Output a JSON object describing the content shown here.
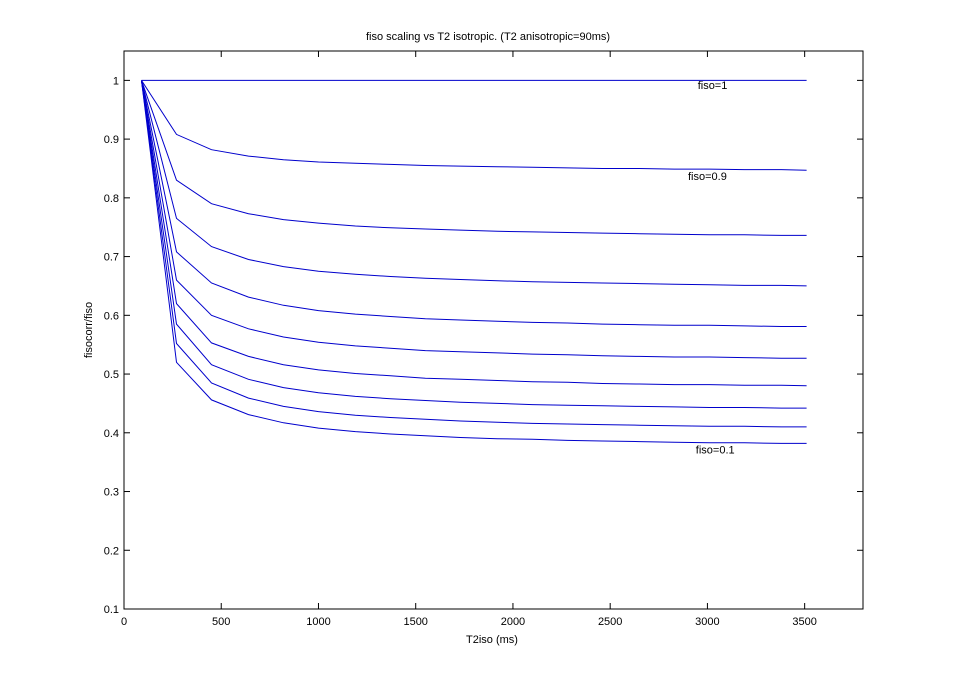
{
  "chart_data": {
    "type": "line",
    "title": "fiso scaling vs T2 isotropic. (T2 anisotropic=90ms)",
    "xlabel": "T2iso (ms)",
    "ylabel": "fisocorr/fiso",
    "xlim": [
      0,
      3800
    ],
    "ylim": [
      0.1,
      1.05
    ],
    "xticks": [
      0,
      500,
      1000,
      1500,
      2000,
      2500,
      3000,
      3500
    ],
    "yticks": [
      0.1,
      0.2,
      0.3,
      0.4,
      0.5,
      0.6,
      0.7,
      0.8,
      0.9,
      1
    ],
    "ytick_labels": [
      "0.1",
      "0.2",
      "0.3",
      "0.4",
      "0.5",
      "0.6",
      "0.7",
      "0.8",
      "0.9",
      "1"
    ],
    "grid": false,
    "line_color": "#0000cc",
    "x": [
      90,
      270,
      450,
      640,
      820,
      1000,
      1190,
      1370,
      1550,
      1730,
      1920,
      2100,
      2280,
      2460,
      2650,
      2830,
      3010,
      3190,
      3380,
      3510
    ],
    "series": [
      {
        "values": [
          1,
          1,
          1,
          1,
          1,
          1,
          1,
          1,
          1,
          1,
          1,
          1,
          1,
          1,
          1,
          1,
          1,
          1,
          1,
          1
        ]
      },
      {
        "values": [
          1,
          0.908,
          0.882,
          0.871,
          0.865,
          0.861,
          0.859,
          0.857,
          0.855,
          0.854,
          0.853,
          0.852,
          0.851,
          0.85,
          0.85,
          0.849,
          0.849,
          0.848,
          0.848,
          0.847
        ]
      },
      {
        "values": [
          1,
          0.83,
          0.79,
          0.773,
          0.763,
          0.757,
          0.752,
          0.749,
          0.747,
          0.745,
          0.743,
          0.742,
          0.741,
          0.74,
          0.739,
          0.738,
          0.737,
          0.737,
          0.736,
          0.736
        ]
      },
      {
        "values": [
          1,
          0.765,
          0.717,
          0.695,
          0.683,
          0.675,
          0.67,
          0.666,
          0.663,
          0.661,
          0.659,
          0.657,
          0.656,
          0.655,
          0.654,
          0.653,
          0.652,
          0.651,
          0.651,
          0.65
        ]
      },
      {
        "values": [
          1,
          0.708,
          0.655,
          0.631,
          0.617,
          0.608,
          0.602,
          0.598,
          0.594,
          0.592,
          0.59,
          0.588,
          0.587,
          0.585,
          0.584,
          0.583,
          0.583,
          0.582,
          0.581,
          0.581
        ]
      },
      {
        "values": [
          1,
          0.66,
          0.6,
          0.577,
          0.563,
          0.554,
          0.548,
          0.544,
          0.54,
          0.538,
          0.536,
          0.534,
          0.533,
          0.531,
          0.53,
          0.529,
          0.529,
          0.528,
          0.527,
          0.527
        ]
      },
      {
        "values": [
          1,
          0.62,
          0.553,
          0.53,
          0.516,
          0.507,
          0.501,
          0.497,
          0.493,
          0.491,
          0.489,
          0.487,
          0.486,
          0.484,
          0.483,
          0.482,
          0.482,
          0.481,
          0.481,
          0.48
        ]
      },
      {
        "values": [
          1,
          0.585,
          0.516,
          0.491,
          0.477,
          0.468,
          0.462,
          0.458,
          0.455,
          0.452,
          0.45,
          0.448,
          0.447,
          0.446,
          0.445,
          0.444,
          0.443,
          0.443,
          0.442,
          0.442
        ]
      },
      {
        "values": [
          1,
          0.552,
          0.485,
          0.459,
          0.445,
          0.436,
          0.43,
          0.426,
          0.423,
          0.42,
          0.418,
          0.416,
          0.415,
          0.414,
          0.413,
          0.412,
          0.411,
          0.411,
          0.41,
          0.41
        ]
      },
      {
        "values": [
          1,
          0.52,
          0.456,
          0.431,
          0.417,
          0.408,
          0.402,
          0.398,
          0.395,
          0.392,
          0.39,
          0.389,
          0.387,
          0.386,
          0.385,
          0.384,
          0.383,
          0.383,
          0.382,
          0.382
        ]
      }
    ],
    "annotations": [
      {
        "text": "fiso=1",
        "x": 2950,
        "y": 0.985
      },
      {
        "text": "fiso=0.9",
        "x": 2900,
        "y": 0.83
      },
      {
        "text": "fiso=0.1",
        "x": 2940,
        "y": 0.365
      }
    ]
  }
}
